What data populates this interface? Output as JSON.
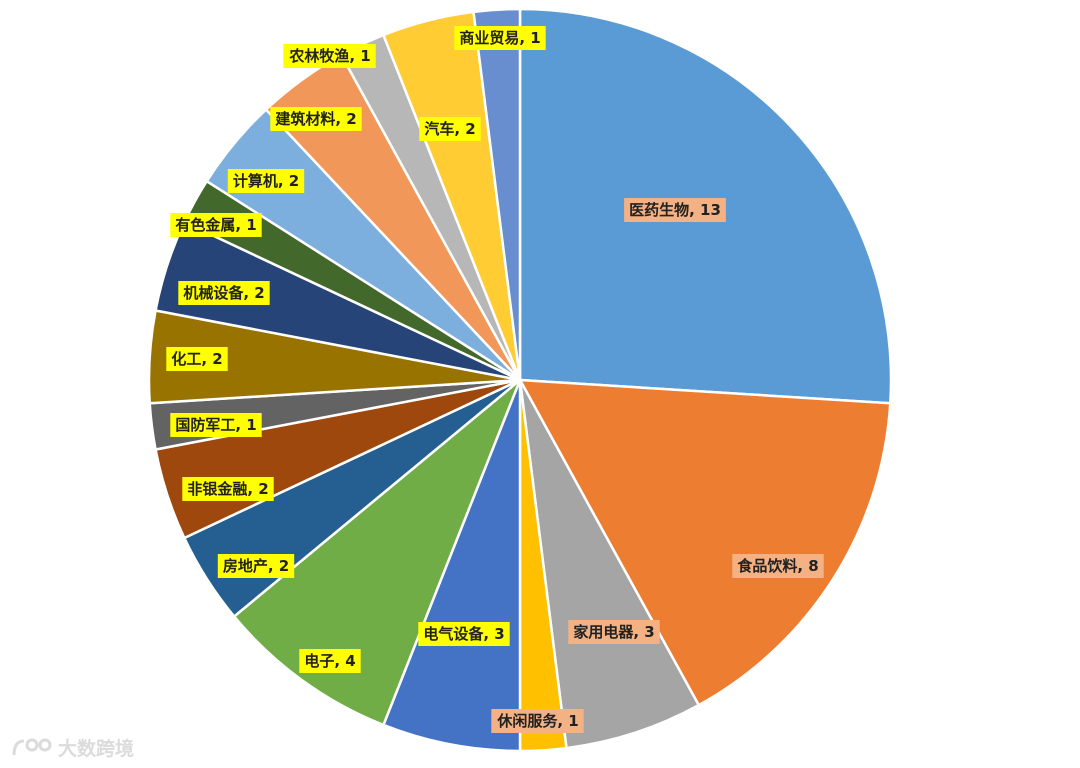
{
  "chart_data": {
    "type": "pie",
    "start_angle_deg": 0,
    "direction": "clockwise",
    "slices": [
      {
        "label": "医药生物",
        "value": 13,
        "color": "#5b9bd5",
        "label_bg": "#f4b183"
      },
      {
        "label": "食品饮料",
        "value": 8,
        "color": "#ed7d31",
        "label_bg": "#f4b183"
      },
      {
        "label": "家用电器",
        "value": 3,
        "color": "#a5a5a5",
        "label_bg": "#f4b183"
      },
      {
        "label": "休闲服务",
        "value": 1,
        "color": "#ffc000",
        "label_bg": "#f4b183"
      },
      {
        "label": "电气设备",
        "value": 3,
        "color": "#4472c4",
        "label_bg": "#ffff00"
      },
      {
        "label": "电子",
        "value": 4,
        "color": "#70ad47",
        "label_bg": "#ffff00"
      },
      {
        "label": "房地产",
        "value": 2,
        "color": "#255e91",
        "label_bg": "#ffff00"
      },
      {
        "label": "非银金融",
        "value": 2,
        "color": "#9e480e",
        "label_bg": "#ffff00"
      },
      {
        "label": "国防军工",
        "value": 1,
        "color": "#636363",
        "label_bg": "#ffff00"
      },
      {
        "label": "化工",
        "value": 2,
        "color": "#997300",
        "label_bg": "#ffff00"
      },
      {
        "label": "机械设备",
        "value": 2,
        "color": "#264478",
        "label_bg": "#ffff00"
      },
      {
        "label": "有色金属",
        "value": 1,
        "color": "#43682b",
        "label_bg": "#ffff00"
      },
      {
        "label": "计算机",
        "value": 2,
        "color": "#7cafdd",
        "label_bg": "#ffff00"
      },
      {
        "label": "建筑材料",
        "value": 2,
        "color": "#f1975a",
        "label_bg": "#ffff00"
      },
      {
        "label": "农林牧渔",
        "value": 1,
        "color": "#b7b7b7",
        "label_bg": "#ffff00"
      },
      {
        "label": "汽车",
        "value": 2,
        "color": "#ffcd33",
        "label_bg": "#ffff00"
      },
      {
        "label": "商业贸易",
        "value": 1,
        "color": "#698ed0",
        "label_bg": "#ffff00"
      }
    ],
    "label_format": "{label}, {value}"
  },
  "watermark": {
    "text": "大数跨境",
    "icon": "logo-icon"
  }
}
